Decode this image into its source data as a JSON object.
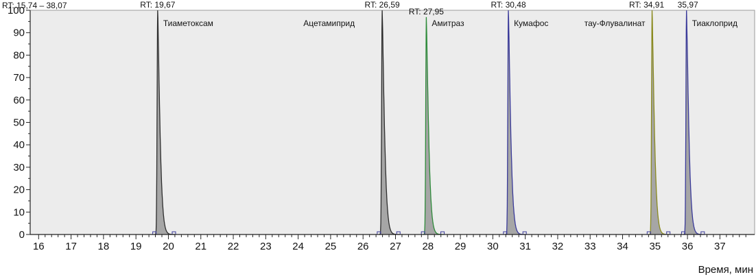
{
  "chart_data": {
    "type": "line",
    "range_label": "RT: 15,74 – 38,07",
    "xlabel": "Время, мин",
    "ylabel": "",
    "xlim": [
      15.74,
      38.07
    ],
    "ylim": [
      0,
      100
    ],
    "x_ticks": [
      "16",
      "17",
      "18",
      "19",
      "20",
      "21",
      "22",
      "23",
      "24",
      "25",
      "26",
      "27",
      "28",
      "29",
      "30",
      "31",
      "32",
      "33",
      "34",
      "35",
      "36",
      "37"
    ],
    "y_ticks": [
      "0",
      "10",
      "20",
      "30",
      "40",
      "50",
      "60",
      "70",
      "80",
      "90",
      "100"
    ],
    "grid": false,
    "background": "#ececec",
    "peaks": [
      {
        "rt": 19.67,
        "rt_label": "RT: 19,67",
        "name": "Тиаметоксам",
        "height": 100,
        "color": "#2e2e2e",
        "fill": "#a6a6a6"
      },
      {
        "rt": 26.59,
        "rt_label": "RT: 26,59",
        "name": "Ацетамиприд",
        "height": 100,
        "color": "#2e2e2e",
        "fill": "#a6a6a6"
      },
      {
        "rt": 27.95,
        "rt_label": "RT: 27,95",
        "name": "Амитраз",
        "height": 97,
        "color": "#2e8b3a",
        "fill": "#a6a6a6"
      },
      {
        "rt": 30.48,
        "rt_label": "RT: 30,48",
        "name": "Кумафос",
        "height": 100,
        "color": "#3a3a9a",
        "fill": "#a6a6a6"
      },
      {
        "rt": 34.91,
        "rt_label": "RT: 34,91",
        "name": "тау-Флувалинат",
        "height": 100,
        "color": "#8a8a1e",
        "fill": "#a6a6a6"
      },
      {
        "rt": 35.97,
        "rt_label": "35,97",
        "name": "Тиаклоприд",
        "height": 100,
        "color": "#3a3a9a",
        "fill": "#a6a6a6"
      }
    ]
  }
}
